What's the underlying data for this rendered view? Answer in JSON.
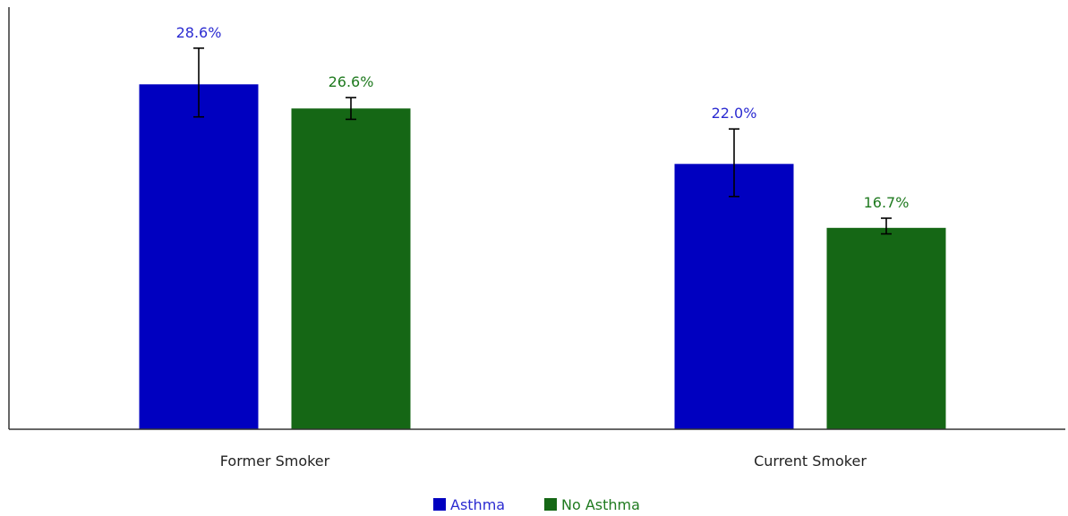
{
  "chart_data": {
    "type": "bar",
    "categories": [
      "Former Smoker",
      "Current Smoker"
    ],
    "series": [
      {
        "name": "Asthma",
        "color": "#0000c0",
        "label_color": "#2b2bd1",
        "values": [
          28.6,
          22.0
        ],
        "labels": [
          "28.6%",
          "22.0%"
        ],
        "error_low": [
          25.9,
          19.3
        ],
        "error_high": [
          31.6,
          24.9
        ]
      },
      {
        "name": "No Asthma",
        "color": "#156715",
        "label_color": "#1f7a1f",
        "values": [
          26.6,
          16.7
        ],
        "labels": [
          "26.6%",
          "16.7%"
        ],
        "error_low": [
          25.7,
          16.2
        ],
        "error_high": [
          27.5,
          17.5
        ]
      }
    ],
    "ylim": [
      0,
      35
    ],
    "y_axis_ticks": "none",
    "grid": false,
    "legend": "bottom-center",
    "title": "",
    "xlabel": "",
    "ylabel": ""
  }
}
